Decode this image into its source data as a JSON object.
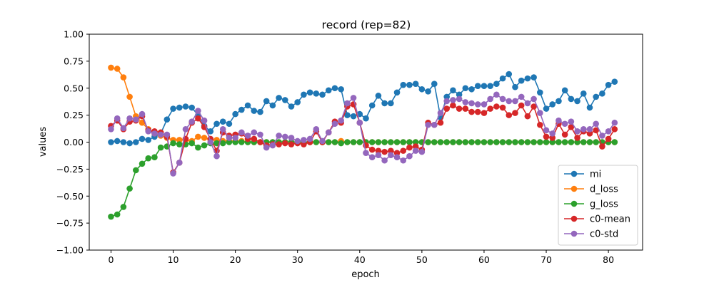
{
  "chart_data": {
    "type": "line",
    "title": "record (rep=82)",
    "xlabel": "epoch",
    "ylabel": "values",
    "xlim": [
      -3.5,
      85.5
    ],
    "ylim": [
      -1.0,
      1.0
    ],
    "xticks": [
      "0",
      "10",
      "20",
      "30",
      "40",
      "50",
      "60",
      "70",
      "80"
    ],
    "yticks": [
      "−1.00",
      "−0.75",
      "−0.50",
      "−0.25",
      "0.00",
      "0.25",
      "0.50",
      "0.75",
      "1.00"
    ],
    "grid": false,
    "legend_position": "lower-right",
    "series": [
      {
        "name": "mi",
        "color": "#1f77b4",
        "values": [
          0.0,
          0.01,
          0.0,
          -0.01,
          0.0,
          0.03,
          0.02,
          0.05,
          0.08,
          0.21,
          0.31,
          0.32,
          0.33,
          0.32,
          0.25,
          0.15,
          0.1,
          0.17,
          0.19,
          0.17,
          0.26,
          0.3,
          0.34,
          0.29,
          0.28,
          0.38,
          0.34,
          0.41,
          0.39,
          0.33,
          0.37,
          0.44,
          0.46,
          0.45,
          0.44,
          0.48,
          0.5,
          0.49,
          0.25,
          0.24,
          0.26,
          0.22,
          0.34,
          0.43,
          0.36,
          0.36,
          0.46,
          0.53,
          0.53,
          0.54,
          0.49,
          0.47,
          0.54,
          0.23,
          0.42,
          0.48,
          0.44,
          0.5,
          0.49,
          0.52,
          0.52,
          0.52,
          0.54,
          0.59,
          0.63,
          0.51,
          0.57,
          0.59,
          0.6,
          0.46,
          0.31,
          0.35,
          0.38,
          0.48,
          0.4,
          0.38,
          0.45,
          0.32,
          0.42,
          0.45,
          0.53,
          0.56
        ]
      },
      {
        "name": "d_loss",
        "color": "#ff7f0e",
        "values": [
          0.69,
          0.68,
          0.6,
          0.42,
          0.24,
          0.18,
          0.12,
          0.08,
          0.06,
          0.04,
          0.02,
          0.02,
          0.02,
          0.01,
          0.05,
          0.04,
          0.02,
          0.02,
          0.01,
          0.01,
          0.01,
          0.01,
          0.0,
          0.0,
          0.0,
          0.0,
          0.0,
          0.0,
          0.0,
          0.0,
          0.0,
          0.0,
          0.0,
          0.0,
          0.0,
          0.0,
          0.0,
          0.01,
          0.0,
          0.0,
          0.0,
          0.0,
          0.0,
          0.0,
          0.0,
          0.0,
          0.0,
          0.0,
          0.0,
          0.0,
          0.0,
          0.0,
          0.0,
          0.0,
          0.0,
          0.0,
          0.0,
          0.0,
          0.0,
          0.0,
          0.0,
          0.0,
          0.0,
          0.0,
          0.0,
          0.0,
          0.0,
          0.0,
          0.0,
          0.0,
          0.0,
          0.0,
          0.0,
          0.0,
          0.0,
          0.0,
          0.0,
          0.0,
          0.0,
          0.0,
          0.0,
          0.0
        ]
      },
      {
        "name": "g_loss",
        "color": "#2ca02c",
        "values": [
          -0.69,
          -0.67,
          -0.6,
          -0.43,
          -0.26,
          -0.2,
          -0.15,
          -0.14,
          -0.05,
          -0.04,
          -0.01,
          -0.02,
          -0.02,
          -0.01,
          -0.05,
          -0.03,
          -0.01,
          -0.01,
          -0.01,
          0.0,
          0.0,
          0.0,
          0.0,
          0.0,
          0.0,
          0.0,
          0.0,
          0.0,
          0.0,
          0.0,
          0.0,
          0.0,
          0.0,
          0.0,
          0.0,
          0.0,
          0.0,
          -0.01,
          0.0,
          0.0,
          0.0,
          0.0,
          0.0,
          0.0,
          0.0,
          0.0,
          0.0,
          0.0,
          0.0,
          0.0,
          0.0,
          0.0,
          0.0,
          0.0,
          0.0,
          0.0,
          0.0,
          0.0,
          0.0,
          0.0,
          0.0,
          0.0,
          0.0,
          0.0,
          0.0,
          0.0,
          0.0,
          0.0,
          0.0,
          0.0,
          0.0,
          0.0,
          0.0,
          0.0,
          0.0,
          0.0,
          0.0,
          0.0,
          0.0,
          0.0,
          0.0,
          0.0
        ]
      },
      {
        "name": "c0-mean",
        "color": "#d62728",
        "values": [
          0.15,
          0.2,
          0.12,
          0.19,
          0.2,
          0.24,
          0.11,
          0.1,
          0.09,
          0.05,
          -0.28,
          -0.19,
          0.03,
          0.18,
          0.22,
          0.14,
          0.03,
          -0.08,
          0.09,
          0.06,
          0.07,
          0.08,
          0.03,
          0.03,
          0.0,
          -0.03,
          -0.02,
          -0.02,
          -0.01,
          -0.02,
          -0.01,
          -0.02,
          0.0,
          0.1,
          0.0,
          0.09,
          0.19,
          0.18,
          0.33,
          0.35,
          0.18,
          -0.03,
          -0.07,
          -0.08,
          -0.09,
          -0.08,
          -0.1,
          -0.08,
          -0.05,
          -0.04,
          -0.07,
          0.18,
          0.16,
          0.18,
          0.31,
          0.34,
          0.31,
          0.31,
          0.28,
          0.28,
          0.27,
          0.31,
          0.33,
          0.32,
          0.25,
          0.27,
          0.34,
          0.24,
          0.33,
          0.16,
          0.05,
          0.04,
          0.17,
          0.07,
          0.14,
          0.04,
          0.1,
          0.08,
          0.11,
          -0.04,
          0.03,
          0.12
        ]
      },
      {
        "name": "c0-std",
        "color": "#9467bd",
        "values": [
          0.12,
          0.22,
          0.13,
          0.22,
          0.21,
          0.26,
          0.1,
          0.08,
          0.07,
          0.07,
          -0.29,
          -0.19,
          0.12,
          0.19,
          0.29,
          0.2,
          0.0,
          -0.13,
          0.12,
          0.04,
          0.04,
          0.09,
          0.06,
          0.09,
          0.07,
          -0.05,
          -0.03,
          0.06,
          0.05,
          0.04,
          0.01,
          0.02,
          0.03,
          0.12,
          0.01,
          0.09,
          0.17,
          0.2,
          0.36,
          0.41,
          0.18,
          -0.1,
          -0.14,
          -0.12,
          -0.17,
          -0.12,
          -0.14,
          -0.17,
          -0.13,
          -0.08,
          -0.09,
          0.16,
          0.16,
          0.27,
          0.38,
          0.39,
          0.4,
          0.37,
          0.36,
          0.35,
          0.35,
          0.4,
          0.44,
          0.4,
          0.38,
          0.38,
          0.42,
          0.36,
          0.4,
          0.27,
          0.11,
          0.08,
          0.2,
          0.17,
          0.19,
          0.1,
          0.12,
          0.12,
          0.17,
          0.06,
          0.1,
          0.18
        ]
      }
    ]
  }
}
